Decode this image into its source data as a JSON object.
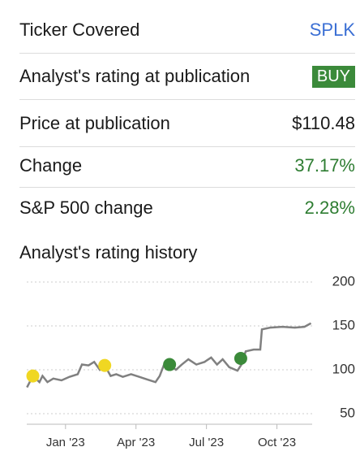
{
  "rows": [
    {
      "label": "Ticker Covered",
      "value": "SPLK"
    },
    {
      "label": "Analyst's rating at publication",
      "value": "BUY"
    },
    {
      "label": "Price at publication",
      "value": "$110.48"
    },
    {
      "label": "Change",
      "value": "37.17%"
    },
    {
      "label": "S&P 500 change",
      "value": "2.28%"
    }
  ],
  "chart_data": {
    "type": "line",
    "title": "Analyst's rating history",
    "color": "#808080",
    "x": [
      -1.64,
      -1.39,
      -1.11,
      -0.98,
      -0.77,
      -0.52,
      -0.17,
      0.17,
      0.52,
      0.7,
      0.98,
      1.22,
      1.46,
      1.67,
      1.92,
      2.16,
      2.44,
      2.79,
      3.14,
      3.48,
      3.83,
      4.01,
      4.18,
      4.43,
      4.7,
      4.95,
      5.23,
      5.57,
      5.92,
      6.2,
      6.45,
      6.69,
      6.97,
      7.32,
      7.49,
      7.67,
      8.01,
      8.29,
      8.36,
      8.71,
      9.23,
      9.76,
      10.17,
      10.45
    ],
    "values": [
      80,
      93,
      86,
      93,
      86,
      90,
      88,
      92,
      95,
      106,
      105,
      109,
      100,
      105,
      93,
      95,
      92,
      95,
      92,
      89,
      86,
      93,
      105,
      106,
      100,
      106,
      112,
      106,
      109,
      114,
      106,
      112,
      103,
      99,
      106,
      121,
      123,
      123,
      146,
      148,
      149,
      148,
      149,
      153
    ],
    "markers": {
      "x": [
        -1.39,
        1.67,
        4.43,
        7.46
      ],
      "values": [
        93,
        105,
        106,
        113
      ],
      "colors": [
        "#f0d722",
        "#f0d722",
        "#3b8a3a",
        "#3b8a3a"
      ]
    },
    "xlim": [
      -1.65,
      10.5
    ],
    "ylim": [
      38,
      200
    ],
    "xticks": [
      {
        "value": 0,
        "label": "Jan '23"
      },
      {
        "value": 3,
        "label": "Apr '23"
      },
      {
        "value": 6,
        "label": "Jul '23"
      },
      {
        "value": 9,
        "label": "Oct '23"
      }
    ],
    "yticks": [
      50,
      100,
      150,
      200
    ],
    "grid": true
  }
}
